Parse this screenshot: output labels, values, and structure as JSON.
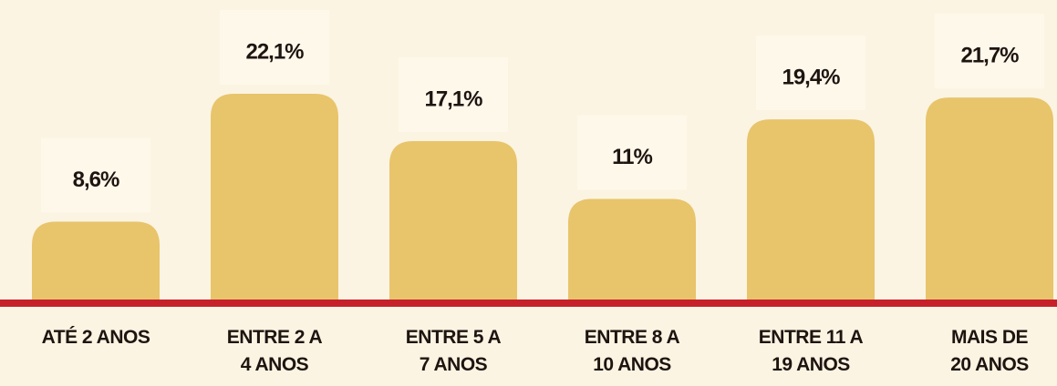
{
  "chart_data": {
    "type": "bar",
    "categories": [
      "ATÉ 2 ANOS",
      "ENTRE 2 A\n4 ANOS",
      "ENTRE 5 A\n7 ANOS",
      "ENTRE 8 A\n10 ANOS",
      "ENTRE 11 A\n19 ANOS",
      "MAIS DE\n20 ANOS"
    ],
    "values": [
      8.6,
      22.1,
      17.1,
      11,
      19.4,
      21.7
    ],
    "value_labels": [
      "8,6%",
      "22,1%",
      "17,1%",
      "11%",
      "19,4%",
      "21,7%"
    ],
    "color": "#e8c46b"
  }
}
